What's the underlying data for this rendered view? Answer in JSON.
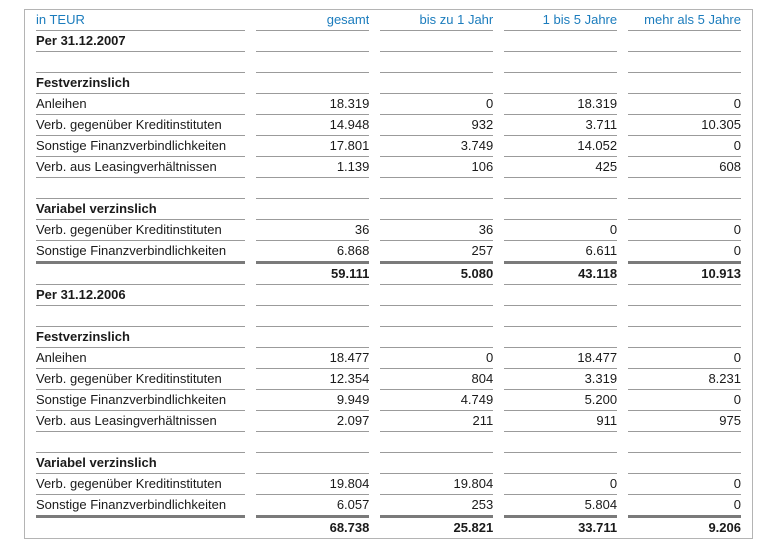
{
  "colors": {
    "accent_blue": "#1b7cbd",
    "text": "#1a1a1a",
    "cell_rule_gray": "#9b9b9b",
    "total_rule_gray": "#7a7a7a",
    "outer_border_gray": "#b4b4b4"
  },
  "table": {
    "unit_label": "in TEUR",
    "columns": [
      "gesamt",
      "bis zu 1 Jahr",
      "1 bis 5 Jahre",
      "mehr als 5 Jahre"
    ],
    "rows": [
      {
        "type": "section",
        "label": "Per 31.12.2007",
        "values": [
          "",
          "",
          "",
          ""
        ]
      },
      {
        "type": "empty",
        "label": "",
        "values": [
          "",
          "",
          "",
          ""
        ]
      },
      {
        "type": "subheader",
        "label": "Festverzinslich",
        "values": [
          "",
          "",
          "",
          ""
        ]
      },
      {
        "type": "data",
        "label": "Anleihen",
        "values": [
          "18.319",
          "0",
          "18.319",
          "0"
        ]
      },
      {
        "type": "data",
        "label": "Verb. gegenüber Kreditinstituten",
        "values": [
          "14.948",
          "932",
          "3.711",
          "10.305"
        ]
      },
      {
        "type": "data",
        "label": "Sonstige Finanzverbindlichkeiten",
        "values": [
          "17.801",
          "3.749",
          "14.052",
          "0"
        ]
      },
      {
        "type": "data",
        "label": "Verb. aus Leasingverhältnissen",
        "values": [
          "1.139",
          "106",
          "425",
          "608"
        ]
      },
      {
        "type": "empty",
        "label": "",
        "values": [
          "",
          "",
          "",
          ""
        ]
      },
      {
        "type": "subheader",
        "label": "Variabel verzinslich",
        "values": [
          "",
          "",
          "",
          ""
        ]
      },
      {
        "type": "data",
        "label": "Verb. gegenüber Kreditinstituten",
        "values": [
          "36",
          "36",
          "0",
          "0"
        ]
      },
      {
        "type": "data",
        "label": "Sonstige Finanzverbindlichkeiten",
        "values": [
          "6.868",
          "257",
          "6.611",
          "0"
        ]
      },
      {
        "type": "total",
        "label": "",
        "values": [
          "59.111",
          "5.080",
          "43.118",
          "10.913"
        ]
      },
      {
        "type": "section",
        "label": "Per 31.12.2006",
        "values": [
          "",
          "",
          "",
          ""
        ]
      },
      {
        "type": "empty",
        "label": "",
        "values": [
          "",
          "",
          "",
          ""
        ]
      },
      {
        "type": "subheader",
        "label": "Festverzinslich",
        "values": [
          "",
          "",
          "",
          ""
        ]
      },
      {
        "type": "data",
        "label": "Anleihen",
        "values": [
          "18.477",
          "0",
          "18.477",
          "0"
        ]
      },
      {
        "type": "data",
        "label": "Verb. gegenüber Kreditinstituten",
        "values": [
          "12.354",
          "804",
          "3.319",
          "8.231"
        ]
      },
      {
        "type": "data",
        "label": "Sonstige Finanzverbindlichkeiten",
        "values": [
          "9.949",
          "4.749",
          "5.200",
          "0"
        ]
      },
      {
        "type": "data",
        "label": "Verb. aus Leasingverhältnissen",
        "values": [
          "2.097",
          "211",
          "911",
          "975"
        ]
      },
      {
        "type": "empty",
        "label": "",
        "values": [
          "",
          "",
          "",
          ""
        ]
      },
      {
        "type": "subheader",
        "label": "Variabel verzinslich",
        "values": [
          "",
          "",
          "",
          ""
        ]
      },
      {
        "type": "data",
        "label": "Verb. gegenüber Kreditinstituten",
        "values": [
          "19.804",
          "19.804",
          "0",
          "0"
        ]
      },
      {
        "type": "data",
        "label": "Sonstige Finanzverbindlichkeiten",
        "values": [
          "6.057",
          "253",
          "5.804",
          "0"
        ]
      },
      {
        "type": "total",
        "label": "",
        "values": [
          "68.738",
          "25.821",
          "33.711",
          "9.206"
        ]
      }
    ]
  }
}
